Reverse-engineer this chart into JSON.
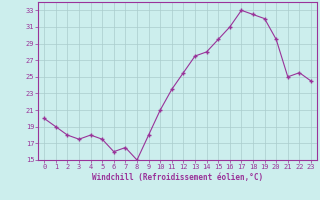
{
  "x": [
    0,
    1,
    2,
    3,
    4,
    5,
    6,
    7,
    8,
    9,
    10,
    11,
    12,
    13,
    14,
    15,
    16,
    17,
    18,
    19,
    20,
    21,
    22,
    23
  ],
  "y": [
    20,
    19,
    18,
    17.5,
    18,
    17.5,
    16,
    16.5,
    15,
    18,
    21,
    23.5,
    25.5,
    27.5,
    28,
    29.5,
    31,
    33,
    32.5,
    32,
    29.5,
    25,
    25.5,
    24.5
  ],
  "line_color": "#993399",
  "marker_color": "#993399",
  "bg_color": "#cceeed",
  "grid_color": "#aacccc",
  "xlabel": "Windchill (Refroidissement éolien,°C)",
  "xlabel_color": "#993399",
  "tick_color": "#993399",
  "spine_color": "#993399",
  "ylim": [
    15,
    34
  ],
  "xlim": [
    -0.5,
    23.5
  ],
  "yticks": [
    15,
    17,
    19,
    21,
    23,
    25,
    27,
    29,
    31,
    33
  ],
  "xticks": [
    0,
    1,
    2,
    3,
    4,
    5,
    6,
    7,
    8,
    9,
    10,
    11,
    12,
    13,
    14,
    15,
    16,
    17,
    18,
    19,
    20,
    21,
    22,
    23
  ],
  "figsize": [
    3.2,
    2.0
  ],
  "dpi": 100
}
